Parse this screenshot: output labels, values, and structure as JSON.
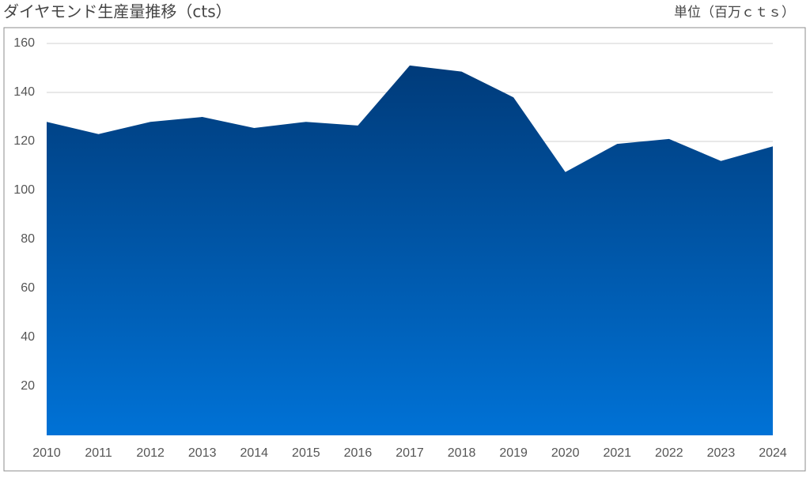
{
  "chart_data": {
    "type": "area",
    "title": "ダイヤモンド生産量推移（cts）",
    "subtitle": "単位（百万ｃｔｓ）",
    "categories": [
      "2010",
      "2011",
      "2012",
      "2013",
      "2014",
      "2015",
      "2016",
      "2017",
      "2018",
      "2019",
      "2020",
      "2021",
      "2022",
      "2023",
      "2024"
    ],
    "values": [
      128,
      123,
      128,
      130,
      125.5,
      128,
      126.5,
      151,
      148.5,
      138,
      107.5,
      119,
      121,
      112,
      118
    ],
    "gradient": [
      "#003b7a",
      "#0072d6"
    ],
    "ylim": [
      0,
      160
    ],
    "yticks": [
      20,
      40,
      60,
      80,
      100,
      120,
      140,
      160
    ],
    "grid": true
  }
}
